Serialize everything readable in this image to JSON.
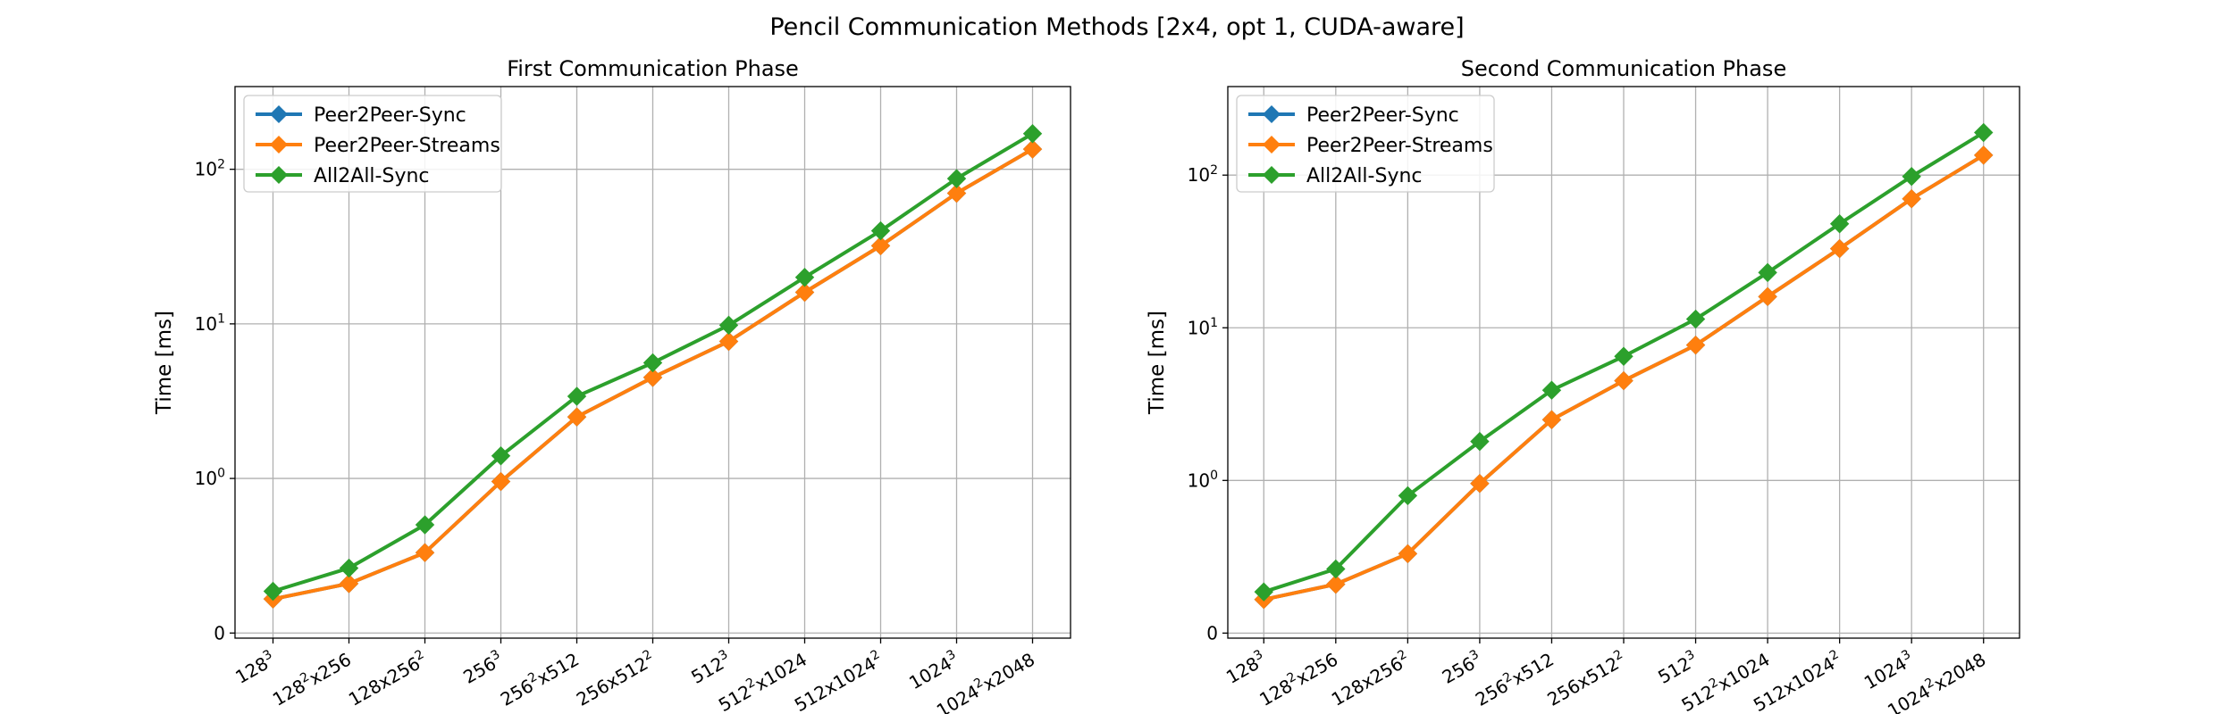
{
  "suptitle": "Pencil Communication Methods [2x4, opt 1, CUDA-aware]",
  "chart_data": [
    {
      "type": "line",
      "title": "First Communication Phase",
      "xlabel": "",
      "ylabel": "Time [ms]",
      "yscale": "symlog",
      "ytick_labels": [
        "0",
        "10^0",
        "10^1",
        "10^2"
      ],
      "grid": true,
      "legend_position": "top-left",
      "categories": [
        "128^3",
        "128^2x256",
        "128x256^2",
        "256^3",
        "256^2x512",
        "256x512^2",
        "512^3",
        "512^2x1024",
        "512x1024^2",
        "1024^3",
        "1024^2x2048"
      ],
      "series": [
        {
          "name": "Peer2Peer-Sync",
          "color": "#1f77b4",
          "values": [
            0.22,
            0.32,
            0.52,
            0.98,
            2.5,
            4.5,
            7.7,
            16.0,
            32.0,
            70.0,
            135.0
          ]
        },
        {
          "name": "Peer2Peer-Streams",
          "color": "#ff7f0e",
          "values": [
            0.22,
            0.32,
            0.52,
            0.98,
            2.5,
            4.5,
            7.7,
            16.0,
            32.0,
            70.0,
            135.0
          ]
        },
        {
          "name": "All2All-Sync",
          "color": "#2ca02c",
          "values": [
            0.27,
            0.42,
            0.7,
            1.4,
            3.4,
            5.6,
            9.8,
            20.0,
            40.0,
            87.0,
            170.0
          ]
        }
      ]
    },
    {
      "type": "line",
      "title": "Second Communication Phase",
      "xlabel": "",
      "ylabel": "Time [ms]",
      "yscale": "symlog",
      "ytick_labels": [
        "0",
        "10^0",
        "10^1",
        "10^2"
      ],
      "grid": true,
      "legend_position": "top-left",
      "categories": [
        "128^3",
        "128^2x256",
        "128x256^2",
        "256^3",
        "256^2x512",
        "256x512^2",
        "512^3",
        "512^2x1024",
        "512x1024^2",
        "1024^3",
        "1024^2x2048"
      ],
      "series": [
        {
          "name": "Peer2Peer-Sync",
          "color": "#1f77b4",
          "values": [
            0.22,
            0.32,
            0.52,
            0.98,
            2.5,
            4.5,
            7.7,
            16.0,
            33.0,
            70.0,
            135.0
          ]
        },
        {
          "name": "Peer2Peer-Streams",
          "color": "#ff7f0e",
          "values": [
            0.22,
            0.32,
            0.52,
            0.98,
            2.5,
            4.5,
            7.7,
            16.0,
            33.0,
            70.0,
            135.0
          ]
        },
        {
          "name": "All2All-Sync",
          "color": "#2ca02c",
          "values": [
            0.27,
            0.42,
            0.9,
            1.8,
            3.9,
            6.5,
            11.4,
            23.0,
            48.0,
            98.0,
            190.0
          ]
        }
      ]
    }
  ]
}
